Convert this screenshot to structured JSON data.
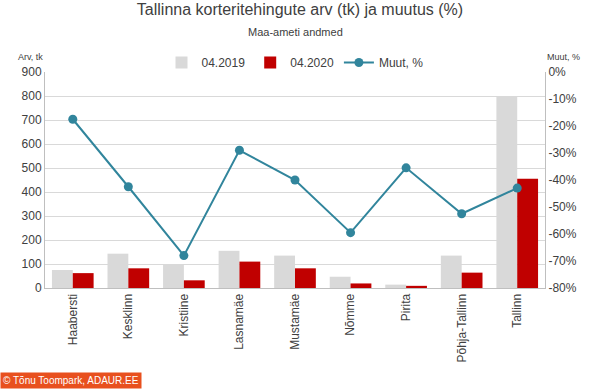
{
  "chart_data": {
    "type": "bar",
    "title": "Tallinna korteritehingute arv (tk) ja muutus (%)",
    "subtitle": "Maa-ameti andmed",
    "y_label": "Arv, tk",
    "y2_label": "Muut, %",
    "credit": "© Tõnu Toompark, ADAUR.EE",
    "categories": [
      "Haabersti",
      "Kesklinn",
      "Kristiine",
      "Lasnamäe",
      "Mustamäe",
      "Nõmme",
      "Pirita",
      "Põhja-Tallinn",
      "Tallinn"
    ],
    "series": [
      {
        "name": "04.2019",
        "type": "bar",
        "color": "#d9d9d9",
        "values": [
          75,
          143,
          98,
          155,
          135,
          47,
          14,
          135,
          797
        ]
      },
      {
        "name": "04.2020",
        "type": "bar",
        "color": "#c00000",
        "values": [
          62,
          82,
          32,
          110,
          82,
          19,
          9,
          64,
          455
        ]
      },
      {
        "name": "Muut, %",
        "type": "line",
        "axis": "y2",
        "color": "#31859c",
        "marker": "circle",
        "values": [
          -17.5,
          -42.5,
          -68,
          -29,
          -40,
          -59.5,
          -35.5,
          -52.5,
          -43
        ]
      }
    ],
    "ylim": [
      0,
      900
    ],
    "yticks": [
      0,
      100,
      200,
      300,
      400,
      500,
      600,
      700,
      800,
      900
    ],
    "y2lim": [
      -80,
      0
    ],
    "y2ticks": [
      {
        "value": 0,
        "label": "0%"
      },
      {
        "value": -10,
        "label": "-10%"
      },
      {
        "value": -20,
        "label": "-20%"
      },
      {
        "value": -30,
        "label": "-30%"
      },
      {
        "value": -40,
        "label": "-40%"
      },
      {
        "value": -50,
        "label": "-50%"
      },
      {
        "value": -60,
        "label": "-60%"
      },
      {
        "value": -70,
        "label": "-70%"
      },
      {
        "value": -80,
        "label": "-80%"
      }
    ],
    "grid": true,
    "legend": "top"
  }
}
